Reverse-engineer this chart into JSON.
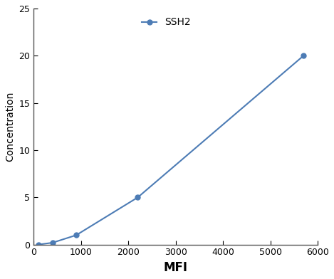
{
  "x": [
    100,
    400,
    900,
    2200,
    5700
  ],
  "y": [
    0,
    0.2,
    1.0,
    5.0,
    20.0
  ],
  "line_color": "#4d7cb5",
  "marker_color": "#4d7cb5",
  "marker_style": "o",
  "marker_size": 5,
  "line_width": 1.5,
  "xlabel": "MFI",
  "ylabel": "Concentration",
  "legend_label": "SSH2",
  "xlim": [
    0,
    6000
  ],
  "ylim": [
    0,
    25
  ],
  "xticks": [
    0,
    1000,
    2000,
    3000,
    4000,
    5000,
    6000
  ],
  "yticks": [
    0,
    5,
    10,
    15,
    20,
    25
  ],
  "xlabel_fontsize": 12,
  "ylabel_fontsize": 10,
  "tick_fontsize": 9,
  "legend_fontsize": 10,
  "background_color": "#ffffff"
}
